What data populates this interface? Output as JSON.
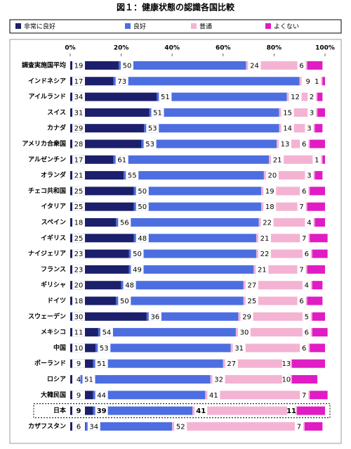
{
  "chart_data": {
    "type": "stacked-barh",
    "title": "図１：健康状態の認識各国比較",
    "categories": [
      "調査実施国平均",
      "インドネシア",
      "アイルランド",
      "スイス",
      "カナダ",
      "アメリカ合衆国",
      "アルゼンチン",
      "オランダ",
      "チェコ共和国",
      "イタリア",
      "スペイン",
      "イギリス",
      "ナイジェリア",
      "フランス",
      "ギリシャ",
      "ドイツ",
      "スウェーデン",
      "メキシコ",
      "中国",
      "ポーランド",
      "ロシア",
      "大韓民国",
      "日本",
      "カザフスタン"
    ],
    "series": [
      {
        "name": "非常に良好",
        "color": "#1c1f6b",
        "values": [
          19,
          17,
          34,
          31,
          29,
          28,
          17,
          21,
          25,
          25,
          18,
          25,
          23,
          23,
          20,
          18,
          30,
          11,
          10,
          9,
          4,
          9,
          9,
          6
        ]
      },
      {
        "name": "良好",
        "color": "#4d6ee0",
        "values": [
          50,
          73,
          51,
          51,
          53,
          53,
          61,
          55,
          50,
          50,
          56,
          48,
          50,
          49,
          48,
          50,
          36,
          54,
          53,
          51,
          51,
          44,
          39,
          34
        ]
      },
      {
        "name": "普通",
        "color": "#f4b3d2",
        "values": [
          24,
          9,
          12,
          15,
          14,
          13,
          21,
          20,
          19,
          18,
          22,
          21,
          22,
          21,
          27,
          25,
          29,
          30,
          31,
          27,
          32,
          41,
          41,
          52
        ]
      },
      {
        "name": "よくない",
        "color": "#e01cc4",
        "values": [
          6,
          1,
          2,
          3,
          3,
          6,
          1,
          3,
          6,
          7,
          4,
          7,
          6,
          7,
          4,
          6,
          5,
          6,
          6,
          13,
          10,
          7,
          11,
          7
        ]
      }
    ],
    "xlim": [
      0,
      100
    ],
    "xticks": [
      {
        "value": 0,
        "label": "0%"
      },
      {
        "value": 20,
        "label": "20%"
      },
      {
        "value": 40,
        "label": "40%"
      },
      {
        "value": 60,
        "label": "60%"
      },
      {
        "value": 80,
        "label": "80%"
      },
      {
        "value": 100,
        "label": "100%"
      }
    ],
    "highlight": "日本"
  }
}
